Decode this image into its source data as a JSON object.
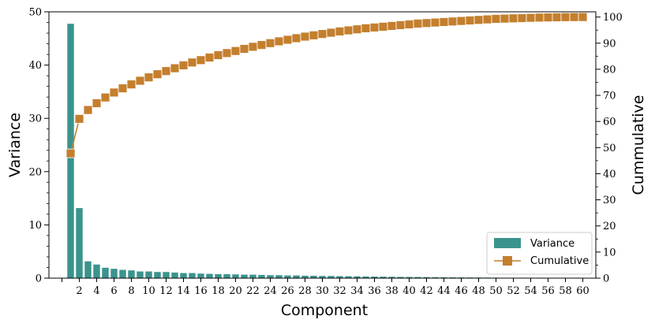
{
  "chart_data": {
    "type": "bar+line",
    "title": "",
    "xlabel": "Component",
    "ylabel": "Variance",
    "y2label": "Cummulative",
    "xlim": [
      -1.5,
      61.5
    ],
    "ylim": [
      0,
      50
    ],
    "y2lim": [
      0,
      102
    ],
    "x": [
      1,
      2,
      3,
      4,
      5,
      6,
      7,
      8,
      9,
      10,
      11,
      12,
      13,
      14,
      15,
      16,
      17,
      18,
      19,
      20,
      21,
      22,
      23,
      24,
      25,
      26,
      27,
      28,
      29,
      30,
      31,
      32,
      33,
      34,
      35,
      36,
      37,
      38,
      39,
      40,
      41,
      42,
      43,
      44,
      45,
      46,
      47,
      48,
      49,
      50,
      51,
      52,
      53,
      54,
      55,
      56,
      57,
      58,
      59,
      60
    ],
    "x_ticks": [
      2,
      4,
      6,
      8,
      10,
      12,
      14,
      16,
      18,
      20,
      22,
      24,
      26,
      28,
      30,
      32,
      34,
      36,
      38,
      40,
      42,
      44,
      46,
      48,
      50,
      52,
      54,
      56,
      58,
      60
    ],
    "y_ticks": [
      0,
      10,
      20,
      30,
      40,
      50
    ],
    "y2_ticks": [
      0,
      10,
      20,
      30,
      40,
      50,
      60,
      70,
      80,
      90,
      100
    ],
    "legend_position": "bottom-right",
    "grid": false,
    "colors": {
      "variance": "#3a948d",
      "cumulative": "#c47f2d"
    },
    "series": [
      {
        "name": "Variance",
        "type": "bar",
        "axis": "left",
        "values": [
          47.8,
          13.2,
          3.2,
          2.6,
          2.0,
          1.8,
          1.6,
          1.5,
          1.3,
          1.3,
          1.2,
          1.2,
          1.1,
          1.0,
          1.0,
          0.9,
          0.85,
          0.8,
          0.8,
          0.75,
          0.7,
          0.7,
          0.65,
          0.6,
          0.6,
          0.55,
          0.55,
          0.5,
          0.5,
          0.45,
          0.45,
          0.42,
          0.4,
          0.38,
          0.36,
          0.34,
          0.32,
          0.3,
          0.28,
          0.27,
          0.26,
          0.24,
          0.22,
          0.21,
          0.2,
          0.18,
          0.17,
          0.16,
          0.15,
          0.14,
          0.12,
          0.11,
          0.1,
          0.09,
          0.08,
          0.07,
          0.06,
          0.05,
          0.04,
          0.03
        ]
      },
      {
        "name": "Cumulative",
        "type": "line",
        "axis": "right",
        "values": [
          47.8,
          61.0,
          64.4,
          67.0,
          69.2,
          71.1,
          72.7,
          74.2,
          75.6,
          76.9,
          78.1,
          79.3,
          80.4,
          81.5,
          82.6,
          83.5,
          84.5,
          85.4,
          86.2,
          87.0,
          87.8,
          88.6,
          89.3,
          90.0,
          90.7,
          91.3,
          91.9,
          92.5,
          93.0,
          93.5,
          94.0,
          94.5,
          94.9,
          95.3,
          95.7,
          96.0,
          96.3,
          96.6,
          96.9,
          97.2,
          97.5,
          97.7,
          97.9,
          98.1,
          98.3,
          98.5,
          98.7,
          98.9,
          99.1,
          99.3,
          99.4,
          99.5,
          99.6,
          99.7,
          99.8,
          99.85,
          99.9,
          99.95,
          99.98,
          100.0
        ]
      }
    ]
  }
}
